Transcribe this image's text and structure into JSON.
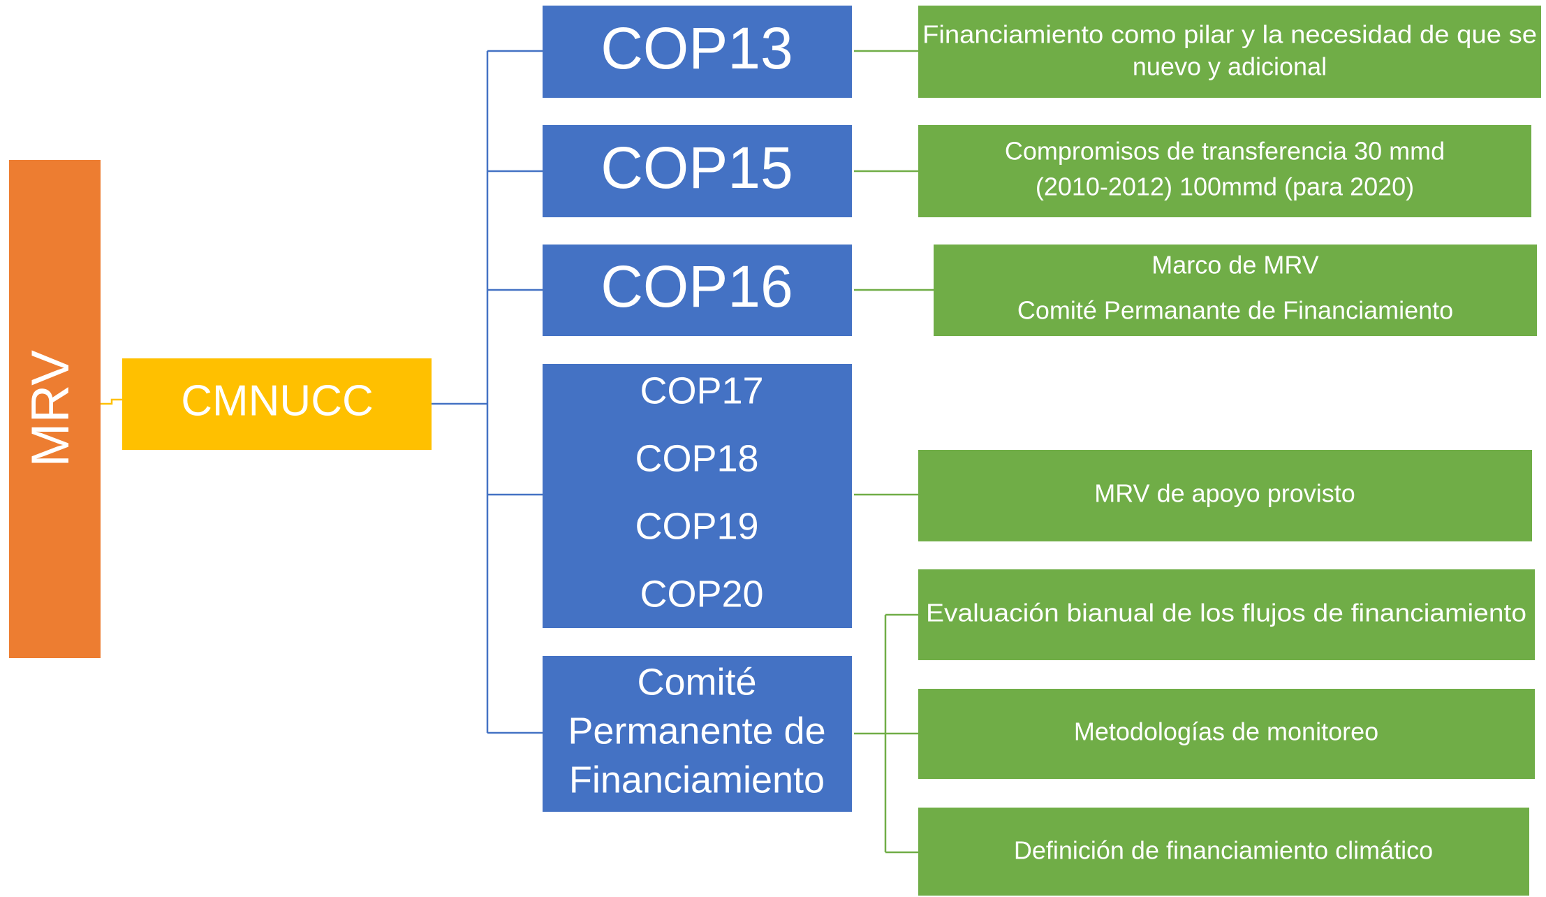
{
  "root": {
    "label": "MRV"
  },
  "hub": {
    "label": "CMNUCC"
  },
  "branches": [
    {
      "lines": [
        "COP13"
      ],
      "notes": [
        {
          "lines": [
            "Financiamiento como pilar y la necesidad de que se",
            "nuevo y adicional"
          ]
        }
      ]
    },
    {
      "lines": [
        "COP15"
      ],
      "notes": [
        {
          "lines": [
            "Compromisos de transferencia 30 mmd",
            "(2010-2012) 100mmd (para 2020)"
          ]
        }
      ]
    },
    {
      "lines": [
        "COP16"
      ],
      "notes": [
        {
          "lines": [
            "Marco de MRV",
            "Comité Permanante de Financiamiento"
          ]
        }
      ]
    },
    {
      "lines": [
        "COP17",
        "COP18",
        "COP19",
        "COP20"
      ],
      "notes": [
        {
          "lines": [
            "MRV de apoyo provisto"
          ]
        }
      ]
    },
    {
      "lines": [
        "Comité",
        "Permanente de",
        "Financiamiento"
      ],
      "notes": [
        {
          "lines": [
            "Evaluación bianual de los flujos de financiamiento"
          ]
        },
        {
          "lines": [
            "Metodologías de monitoreo"
          ]
        },
        {
          "lines": [
            "Definición de financiamiento climático"
          ]
        }
      ]
    }
  ]
}
